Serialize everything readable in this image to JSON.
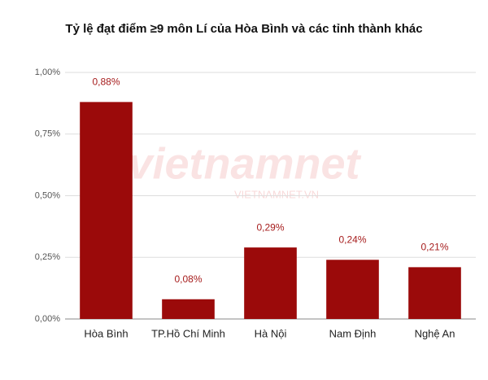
{
  "chart_data": {
    "type": "bar",
    "title": "Tỷ lệ đạt điểm ≥9 môn Lí của Hòa Bình và các tỉnh thành khác",
    "categories": [
      "Hòa Bình",
      "TP.Hồ Chí Minh",
      "Hà Nội",
      "Nam Định",
      "Nghệ An"
    ],
    "values": [
      0.88,
      0.08,
      0.29,
      0.24,
      0.21
    ],
    "value_labels": [
      "0,88%",
      "0,08%",
      "0,29%",
      "0,24%",
      "0,21%"
    ],
    "color": "#9b0a0a",
    "ylim": [
      0,
      1
    ],
    "yticks": [
      {
        "value": 0,
        "label": "0,00%"
      },
      {
        "value": 0.25,
        "label": "0,25%"
      },
      {
        "value": 0.5,
        "label": "0,50%"
      },
      {
        "value": 0.75,
        "label": "0,75%"
      },
      {
        "value": 1,
        "label": "1,00%"
      }
    ],
    "grid": true,
    "watermark": "vietnamnet",
    "watermark_url": "VIETNAMNET.VN"
  }
}
